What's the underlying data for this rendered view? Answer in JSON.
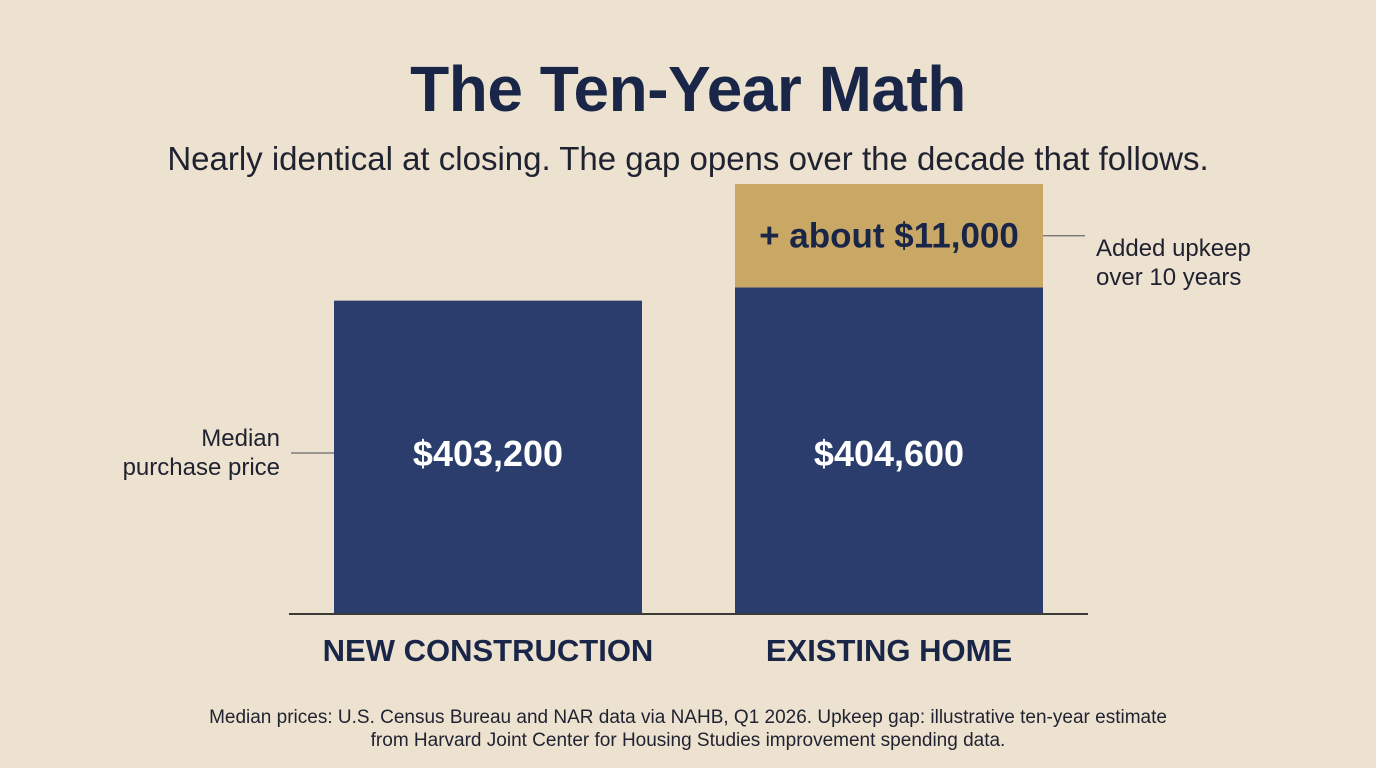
{
  "title": "The Ten-Year Math",
  "subtitle": "Nearly identical at closing. The gap opens over the decade that follows.",
  "chart_data": {
    "type": "bar",
    "stacked": true,
    "categories": [
      "NEW CONSTRUCTION",
      "EXISTING HOME"
    ],
    "series": [
      {
        "name": "Median purchase price",
        "values": [
          403200,
          404600
        ],
        "value_labels": [
          "$403,200",
          "$404,600"
        ],
        "color": "#2a3d6c"
      },
      {
        "name": "Added upkeep over 10 years",
        "values": [
          0,
          11000
        ],
        "value_labels": [
          "",
          "+ about $11,000"
        ],
        "color": "#c9a866"
      }
    ],
    "annotations": {
      "left": [
        "Median",
        "purchase price"
      ],
      "right": [
        "Added upkeep",
        "over 10 years"
      ]
    },
    "axis_color": "#3a3a3a",
    "grid": false,
    "legend": "none"
  },
  "footnote": {
    "line1": "Median prices: U.S. Census Bureau and NAR data via NAHB, Q1 2026. Upkeep gap: illustrative ten-year estimate",
    "line2": "from Harvard Joint Center for Housing Studies improvement spending data."
  }
}
